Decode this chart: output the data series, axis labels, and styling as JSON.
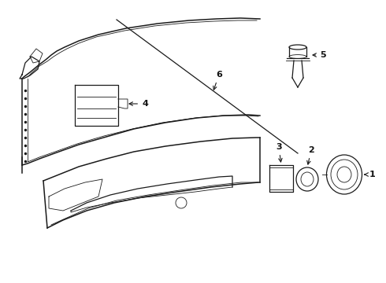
{
  "background_color": "#ffffff",
  "line_color": "#1a1a1a",
  "lw_main": 0.9,
  "lw_thin": 0.6,
  "lw_thick": 1.1
}
